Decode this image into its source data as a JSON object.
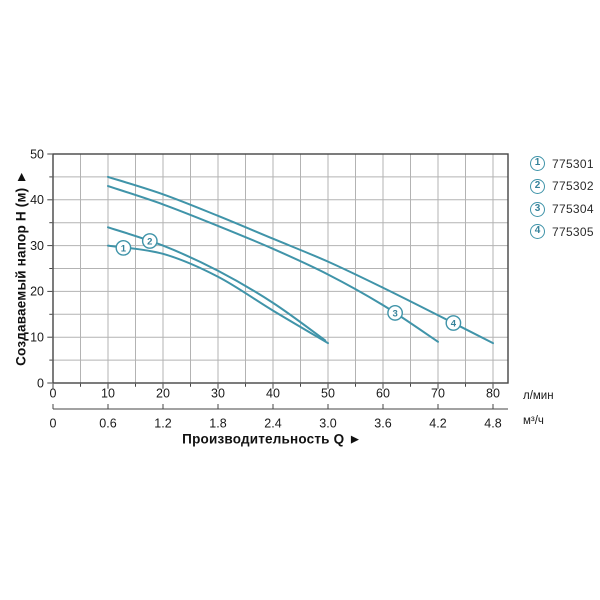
{
  "chart_data": {
    "type": "line",
    "title": "",
    "xlabel": "Производительность Q ►",
    "ylabel": "Создаваемый напор Н (м) ►",
    "x_axis": {
      "primary": {
        "unit": "л/мин",
        "ticks": [
          0,
          10,
          20,
          30,
          40,
          50,
          60,
          70,
          80
        ]
      },
      "secondary": {
        "unit": "м³/ч",
        "ticks": [
          "0",
          "0.6",
          "1.2",
          "1.8",
          "2.4",
          "3.0",
          "3.6",
          "4.2",
          "4.8"
        ]
      }
    },
    "y_axis": {
      "unit": "м",
      "ticks": [
        0,
        10,
        20,
        30,
        40,
        50
      ]
    },
    "xlim": [
      0,
      82.7
    ],
    "ylim": [
      0,
      50
    ],
    "grid": "on, every 5 units both axes",
    "legend_position": "outside top-right",
    "series": [
      {
        "marker_num": "1",
        "name": "775301",
        "points": [
          [
            10,
            30
          ],
          [
            20,
            28.2
          ],
          [
            30,
            23.2
          ],
          [
            40,
            15.8
          ],
          [
            50,
            8.7
          ]
        ],
        "marker_at": [
          12.8,
          29.5
        ]
      },
      {
        "marker_num": "2",
        "name": "775302",
        "points": [
          [
            10,
            34
          ],
          [
            20,
            30
          ],
          [
            30,
            24.5
          ],
          [
            40,
            17.5
          ],
          [
            49.5,
            9.3
          ]
        ],
        "marker_at": [
          17.6,
          31
        ]
      },
      {
        "marker_num": "3",
        "name": "775304",
        "points": [
          [
            10,
            43
          ],
          [
            20,
            39
          ],
          [
            30,
            34.3
          ],
          [
            40,
            29.3
          ],
          [
            50,
            23.7
          ],
          [
            60,
            17
          ],
          [
            70,
            9
          ]
        ],
        "marker_at": [
          62.2,
          15.3
        ]
      },
      {
        "marker_num": "4",
        "name": "775305",
        "points": [
          [
            10,
            45
          ],
          [
            20,
            41.2
          ],
          [
            30,
            36.5
          ],
          [
            40,
            31.5
          ],
          [
            50,
            26.5
          ],
          [
            60,
            20.8
          ],
          [
            70,
            14.8
          ],
          [
            80,
            8.7
          ]
        ],
        "marker_at": [
          72.8,
          13.1
        ]
      }
    ]
  },
  "legend": {
    "items": [
      {
        "num": "1",
        "label": "775301"
      },
      {
        "num": "2",
        "label": "775302"
      },
      {
        "num": "3",
        "label": "775304"
      },
      {
        "num": "4",
        "label": "775305"
      }
    ]
  },
  "colors": {
    "curve": "#4094a9",
    "marker_text": "#35829a",
    "grid": "#b3b3b3",
    "frame": "#454545",
    "tick_text": "#1a1a1a",
    "legend_text": "#2b2b2b"
  }
}
